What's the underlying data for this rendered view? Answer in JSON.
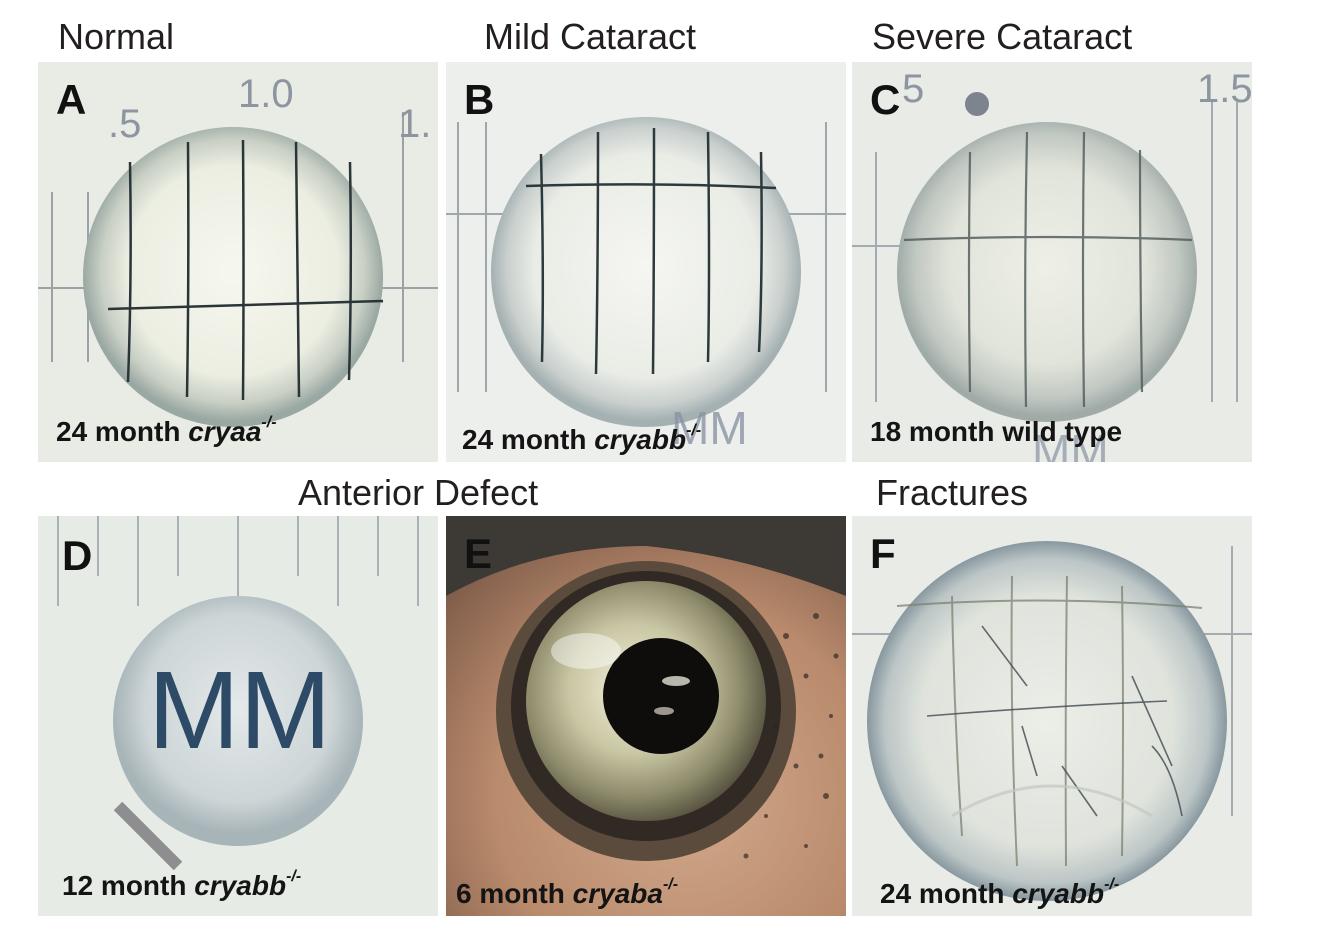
{
  "titles": {
    "normal": "Normal",
    "mild": "Mild Cataract",
    "severe": "Severe Cataract",
    "anterior": "Anterior Defect",
    "fractures": "Fractures"
  },
  "panels": {
    "a": {
      "letter": "A",
      "caption_prefix": "24 month ",
      "gene": "cryaa",
      "genotype": "-/-",
      "ruler_labels": [
        ".5",
        "1.0",
        "1."
      ]
    },
    "b": {
      "letter": "B",
      "caption_prefix": "24 month ",
      "gene": "cryabb",
      "genotype": "-/-",
      "ruler_labels": [
        "MM"
      ]
    },
    "c": {
      "letter": "C",
      "caption_prefix": "18 month wild type",
      "ruler_labels": [
        "5",
        "1.5",
        "MM"
      ]
    },
    "d": {
      "letter": "D",
      "caption_prefix": "12 month ",
      "gene": "cryabb",
      "genotype": "-/-",
      "lens_text": "MM"
    },
    "e": {
      "letter": "E",
      "caption_prefix": "6 month ",
      "gene": "cryaba",
      "genotype": "-/-"
    },
    "f": {
      "letter": "F",
      "caption_prefix": "24 month ",
      "gene": "cryabb",
      "genotype": "-/-"
    }
  }
}
